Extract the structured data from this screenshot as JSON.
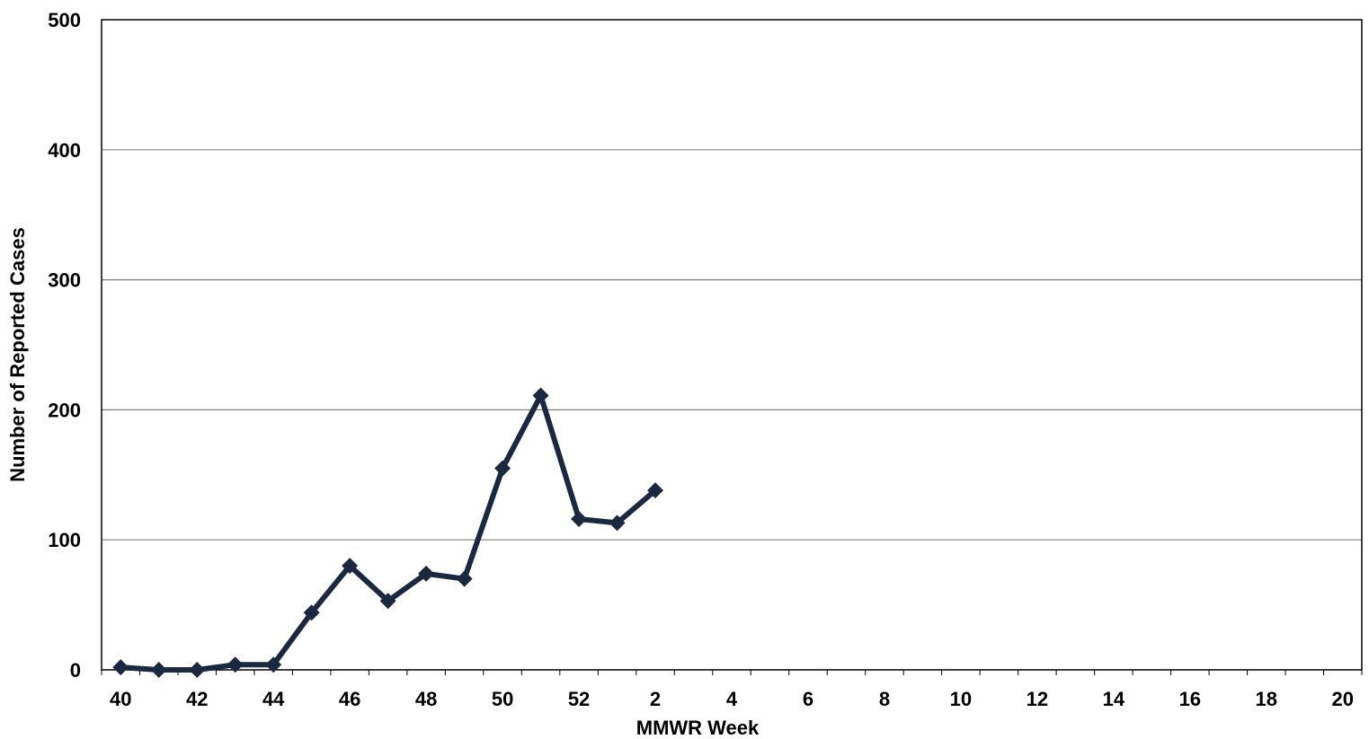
{
  "chart_data": {
    "type": "line",
    "title": "",
    "xlabel": "MMWR Week",
    "ylabel": "Number of Reported Cases",
    "ylim": [
      0,
      500
    ],
    "yticks": [
      "0",
      "100",
      "200",
      "300",
      "400",
      "500"
    ],
    "xticks": [
      "40",
      "42",
      "44",
      "46",
      "48",
      "50",
      "52",
      "2",
      "4",
      "6",
      "8",
      "10",
      "12",
      "14",
      "16",
      "18",
      "20"
    ],
    "x": [
      "40",
      "41",
      "42",
      "43",
      "44",
      "45",
      "46",
      "47",
      "48",
      "49",
      "50",
      "51",
      "52",
      "1",
      "2"
    ],
    "series": [
      {
        "name": "",
        "values": [
          2,
          0,
          0,
          4,
          4,
          44,
          80,
          53,
          74,
          70,
          155,
          211,
          116,
          113,
          138
        ]
      }
    ],
    "grid": true,
    "legend": "none",
    "colors": {
      "line": "#1a2940",
      "grid": "#808080",
      "axis": "#000000"
    }
  }
}
